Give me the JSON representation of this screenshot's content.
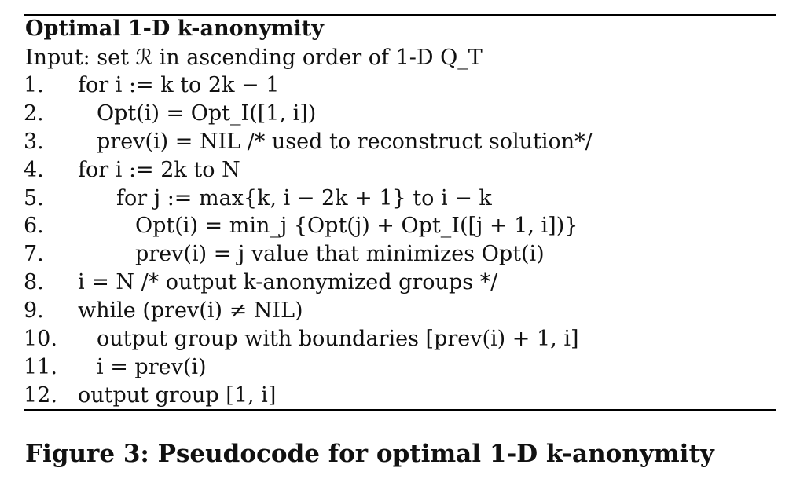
{
  "algorithm": {
    "title": "Optimal 1-D k-anonymity",
    "input": "Input: set ℛ in ascending order of 1-D Q_T"
  },
  "lines": [
    {
      "num": "1.",
      "indent": 0,
      "text": "for i := k to 2k − 1"
    },
    {
      "num": "2.",
      "indent": 1,
      "text": "Opt(i) = Opt_I([1, i])"
    },
    {
      "num": "3.",
      "indent": 1,
      "text": "prev(i) = NIL /* used to reconstruct solution*/"
    },
    {
      "num": "4.",
      "indent": 0,
      "text": "for i := 2k to N"
    },
    {
      "num": "5.",
      "indent": 2,
      "text": "for j := max{k, i − 2k + 1} to i − k"
    },
    {
      "num": "6.",
      "indent": 3,
      "text": "Opt(i) = min_j {Opt(j) + Opt_I([j + 1, i])}"
    },
    {
      "num": "7.",
      "indent": 3,
      "text": "prev(i) = j value that minimizes Opt(i)"
    },
    {
      "num": "8.",
      "indent": 0,
      "text": "i = N /* output k-anonymized groups */"
    },
    {
      "num": "9.",
      "indent": 0,
      "text": "while (prev(i) ≠ NIL)"
    },
    {
      "num": "10.",
      "indent": 1,
      "text": "output group with boundaries [prev(i) + 1, i]"
    },
    {
      "num": "11.",
      "indent": 1,
      "text": "i = prev(i)"
    },
    {
      "num": "12.",
      "indent": 0,
      "text": "output group [1, i]"
    }
  ],
  "caption": "Figure 3: Pseudocode for optimal 1-D k-anonymity"
}
